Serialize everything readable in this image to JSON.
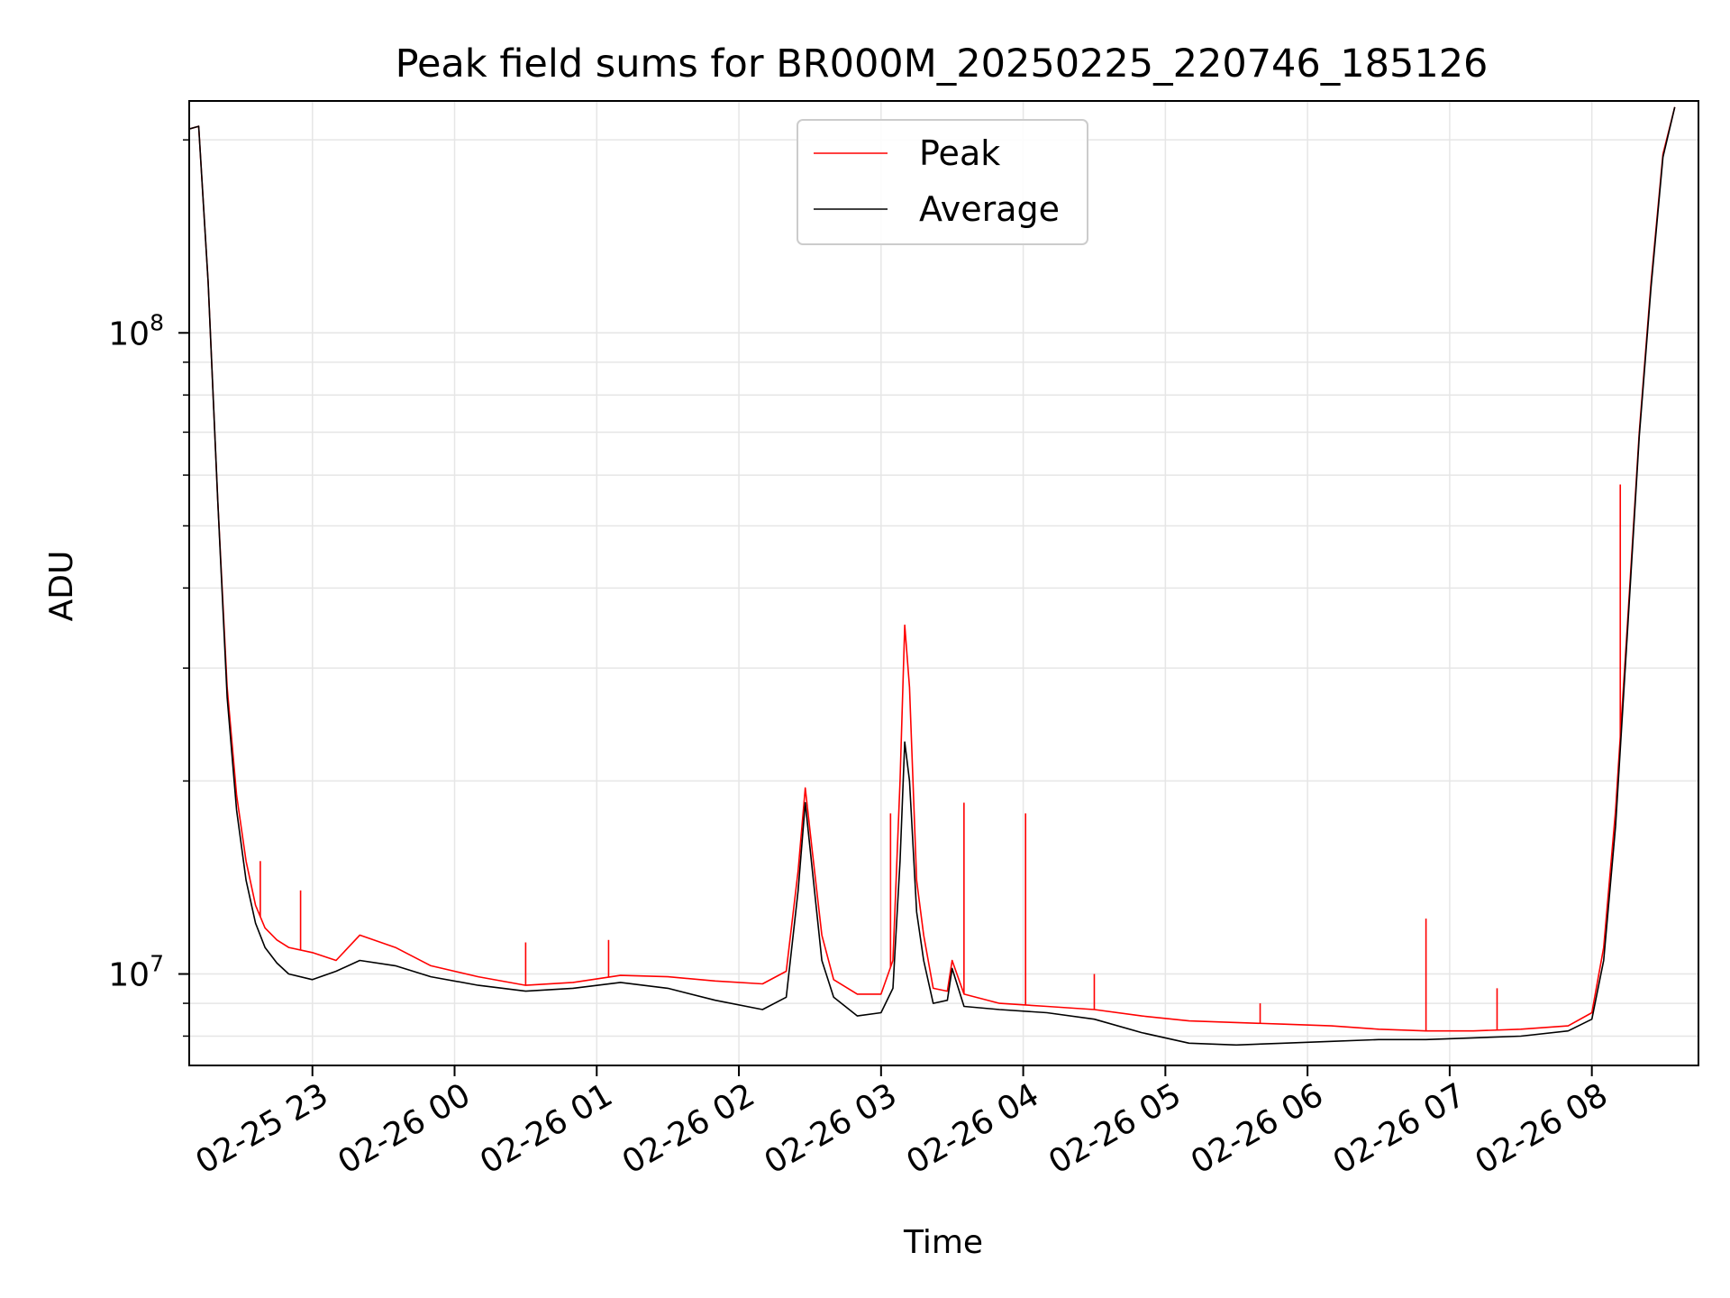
{
  "chart_data": {
    "type": "line",
    "title": "Peak field sums for BR000M_20250225_220746_185126",
    "xlabel": "Time",
    "ylabel": "ADU",
    "y_scale": "log",
    "ylim": [
      7200000,
      230000000
    ],
    "xlim": [
      "2025-02-25 22:08",
      "2025-02-26 08:45"
    ],
    "grid": true,
    "legend_position": "top-center",
    "x_ticks": [
      {
        "value": "2025-02-25 23:00",
        "label": "02-25 23"
      },
      {
        "value": "2025-02-26 00:00",
        "label": "02-26 00"
      },
      {
        "value": "2025-02-26 01:00",
        "label": "02-26 01"
      },
      {
        "value": "2025-02-26 02:00",
        "label": "02-26 02"
      },
      {
        "value": "2025-02-26 03:00",
        "label": "02-26 03"
      },
      {
        "value": "2025-02-26 04:00",
        "label": "02-26 04"
      },
      {
        "value": "2025-02-26 05:00",
        "label": "02-26 05"
      },
      {
        "value": "2025-02-26 06:00",
        "label": "02-26 06"
      },
      {
        "value": "2025-02-26 07:00",
        "label": "02-26 07"
      },
      {
        "value": "2025-02-26 08:00",
        "label": "02-26 08"
      }
    ],
    "y_ticks": [
      {
        "value": 10000000,
        "base": "10",
        "exp": "7"
      },
      {
        "value": 100000000,
        "base": "10",
        "exp": "8"
      }
    ],
    "series": [
      {
        "name": "Peak",
        "color": "#ff0000",
        "points": [
          [
            "2025-02-25 22:08",
            208000000
          ],
          [
            "2025-02-25 22:12",
            210000000
          ],
          [
            "2025-02-25 22:16",
            120000000
          ],
          [
            "2025-02-25 22:20",
            55000000
          ],
          [
            "2025-02-25 22:24",
            28000000
          ],
          [
            "2025-02-25 22:28",
            19000000
          ],
          [
            "2025-02-25 22:32",
            15000000
          ],
          [
            "2025-02-25 22:36",
            12800000
          ],
          [
            "2025-02-25 22:40",
            11800000
          ],
          [
            "2025-02-25 22:45",
            11300000
          ],
          [
            "2025-02-25 22:50",
            11000000
          ],
          [
            "2025-02-25 23:00",
            10800000
          ],
          [
            "2025-02-25 23:10",
            10500000
          ],
          [
            "2025-02-25 23:20",
            11500000
          ],
          [
            "2025-02-25 23:35",
            11000000
          ],
          [
            "2025-02-25 23:50",
            10300000
          ],
          [
            "2025-02-26 00:10",
            9900000
          ],
          [
            "2025-02-26 00:30",
            9600000
          ],
          [
            "2025-02-26 00:50",
            9700000
          ],
          [
            "2025-02-26 01:10",
            9950000
          ],
          [
            "2025-02-26 01:30",
            9900000
          ],
          [
            "2025-02-26 01:50",
            9750000
          ],
          [
            "2025-02-26 02:10",
            9650000
          ],
          [
            "2025-02-26 02:20",
            10100000
          ],
          [
            "2025-02-26 02:25",
            14500000
          ],
          [
            "2025-02-26 02:28",
            19500000
          ],
          [
            "2025-02-26 02:31",
            15500000
          ],
          [
            "2025-02-26 02:35",
            11500000
          ],
          [
            "2025-02-26 02:40",
            9800000
          ],
          [
            "2025-02-26 02:50",
            9300000
          ],
          [
            "2025-02-26 03:00",
            9300000
          ],
          [
            "2025-02-26 03:05",
            10500000
          ],
          [
            "2025-02-26 03:08",
            20000000
          ],
          [
            "2025-02-26 03:10",
            35000000
          ],
          [
            "2025-02-26 03:12",
            28000000
          ],
          [
            "2025-02-26 03:15",
            14000000
          ],
          [
            "2025-02-26 03:18",
            11500000
          ],
          [
            "2025-02-26 03:22",
            9500000
          ],
          [
            "2025-02-26 03:28",
            9400000
          ],
          [
            "2025-02-26 03:30",
            10500000
          ],
          [
            "2025-02-26 03:35",
            9300000
          ],
          [
            "2025-02-26 03:50",
            9000000
          ],
          [
            "2025-02-26 04:10",
            8900000
          ],
          [
            "2025-02-26 04:30",
            8800000
          ],
          [
            "2025-02-26 04:50",
            8600000
          ],
          [
            "2025-02-26 05:10",
            8450000
          ],
          [
            "2025-02-26 05:30",
            8400000
          ],
          [
            "2025-02-26 05:50",
            8350000
          ],
          [
            "2025-02-26 06:10",
            8300000
          ],
          [
            "2025-02-26 06:30",
            8200000
          ],
          [
            "2025-02-26 06:50",
            8150000
          ],
          [
            "2025-02-26 07:10",
            8150000
          ],
          [
            "2025-02-26 07:30",
            8200000
          ],
          [
            "2025-02-26 07:50",
            8300000
          ],
          [
            "2025-02-26 08:00",
            8700000
          ],
          [
            "2025-02-26 08:05",
            11000000
          ],
          [
            "2025-02-26 08:10",
            18000000
          ],
          [
            "2025-02-26 08:15",
            35000000
          ],
          [
            "2025-02-26 08:20",
            70000000
          ],
          [
            "2025-02-26 08:25",
            120000000
          ],
          [
            "2025-02-26 08:30",
            190000000
          ],
          [
            "2025-02-26 08:35",
            225000000
          ]
        ],
        "spikes": [
          [
            "2025-02-25 22:38",
            15000000
          ],
          [
            "2025-02-25 22:55",
            13500000
          ],
          [
            "2025-02-26 00:30",
            11200000
          ],
          [
            "2025-02-26 01:05",
            11300000
          ],
          [
            "2025-02-26 03:04",
            17800000
          ],
          [
            "2025-02-26 03:35",
            18500000
          ],
          [
            "2025-02-26 04:01",
            17800000
          ],
          [
            "2025-02-26 04:30",
            10000000
          ],
          [
            "2025-02-26 05:40",
            9000000
          ],
          [
            "2025-02-26 06:50",
            12200000
          ],
          [
            "2025-02-26 07:20",
            9500000
          ],
          [
            "2025-02-26 08:12",
            58000000
          ]
        ]
      },
      {
        "name": "Average",
        "color": "#000000",
        "points": [
          [
            "2025-02-25 22:08",
            208000000
          ],
          [
            "2025-02-25 22:12",
            210000000
          ],
          [
            "2025-02-25 22:16",
            120000000
          ],
          [
            "2025-02-25 22:20",
            55000000
          ],
          [
            "2025-02-25 22:24",
            27000000
          ],
          [
            "2025-02-25 22:28",
            18000000
          ],
          [
            "2025-02-25 22:32",
            14000000
          ],
          [
            "2025-02-25 22:36",
            12000000
          ],
          [
            "2025-02-25 22:40",
            11000000
          ],
          [
            "2025-02-25 22:45",
            10400000
          ],
          [
            "2025-02-25 22:50",
            10000000
          ],
          [
            "2025-02-25 23:00",
            9800000
          ],
          [
            "2025-02-25 23:10",
            10100000
          ],
          [
            "2025-02-25 23:20",
            10500000
          ],
          [
            "2025-02-25 23:35",
            10300000
          ],
          [
            "2025-02-25 23:50",
            9900000
          ],
          [
            "2025-02-26 00:10",
            9600000
          ],
          [
            "2025-02-26 00:30",
            9400000
          ],
          [
            "2025-02-26 00:50",
            9500000
          ],
          [
            "2025-02-26 01:10",
            9700000
          ],
          [
            "2025-02-26 01:30",
            9500000
          ],
          [
            "2025-02-26 01:50",
            9100000
          ],
          [
            "2025-02-26 02:10",
            8800000
          ],
          [
            "2025-02-26 02:20",
            9200000
          ],
          [
            "2025-02-26 02:25",
            13500000
          ],
          [
            "2025-02-26 02:28",
            18500000
          ],
          [
            "2025-02-26 02:31",
            14500000
          ],
          [
            "2025-02-26 02:35",
            10500000
          ],
          [
            "2025-02-26 02:40",
            9200000
          ],
          [
            "2025-02-26 02:50",
            8600000
          ],
          [
            "2025-02-26 03:00",
            8700000
          ],
          [
            "2025-02-26 03:05",
            9500000
          ],
          [
            "2025-02-26 03:08",
            15000000
          ],
          [
            "2025-02-26 03:10",
            23000000
          ],
          [
            "2025-02-26 03:12",
            20000000
          ],
          [
            "2025-02-26 03:15",
            12500000
          ],
          [
            "2025-02-26 03:18",
            10500000
          ],
          [
            "2025-02-26 03:22",
            9000000
          ],
          [
            "2025-02-26 03:28",
            9100000
          ],
          [
            "2025-02-26 03:30",
            10200000
          ],
          [
            "2025-02-26 03:35",
            8900000
          ],
          [
            "2025-02-26 03:50",
            8800000
          ],
          [
            "2025-02-26 04:10",
            8700000
          ],
          [
            "2025-02-26 04:30",
            8500000
          ],
          [
            "2025-02-26 04:50",
            8100000
          ],
          [
            "2025-02-26 05:10",
            7800000
          ],
          [
            "2025-02-26 05:30",
            7750000
          ],
          [
            "2025-02-26 05:50",
            7800000
          ],
          [
            "2025-02-26 06:10",
            7850000
          ],
          [
            "2025-02-26 06:30",
            7900000
          ],
          [
            "2025-02-26 06:50",
            7900000
          ],
          [
            "2025-02-26 07:10",
            7950000
          ],
          [
            "2025-02-26 07:30",
            8000000
          ],
          [
            "2025-02-26 07:50",
            8150000
          ],
          [
            "2025-02-26 08:00",
            8500000
          ],
          [
            "2025-02-26 08:05",
            10500000
          ],
          [
            "2025-02-26 08:10",
            17000000
          ],
          [
            "2025-02-26 08:15",
            34000000
          ],
          [
            "2025-02-26 08:20",
            69000000
          ],
          [
            "2025-02-26 08:25",
            118000000
          ],
          [
            "2025-02-26 08:30",
            188000000
          ],
          [
            "2025-02-26 08:35",
            225000000
          ]
        ]
      }
    ]
  }
}
